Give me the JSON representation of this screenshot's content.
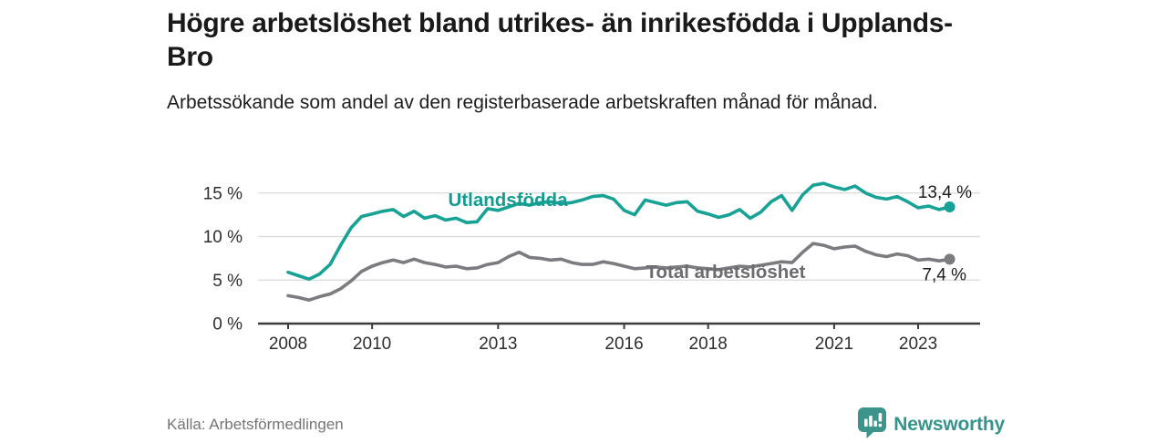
{
  "page": {
    "title": "Högre arbetslöshet bland utrikes- än inrikesfödda i Upplands-Bro",
    "subtitle": "Arbetssökande som andel av den registerbaserade arbetskraften månad för månad.",
    "source": "Källa: Arbetsförmedlingen",
    "brand": {
      "name": "Newsworthy",
      "icon": "newsworthy-chart-bubble-icon",
      "color": "#35948C"
    }
  },
  "chart_data": {
    "type": "line",
    "title": "",
    "xlabel": "",
    "ylabel": "",
    "grid": "horizontal",
    "legend_position": "inline-labels",
    "ylim": [
      0,
      17
    ],
    "y_ticks": [
      {
        "value": 0,
        "label": "0 %"
      },
      {
        "value": 5,
        "label": "5 %"
      },
      {
        "value": 10,
        "label": "10 %"
      },
      {
        "value": 15,
        "label": "15 %"
      }
    ],
    "x_ticks": [
      2008,
      2010,
      2013,
      2016,
      2018,
      2021,
      2023
    ],
    "x_start": 2008,
    "x_step_years": 0.25,
    "x": [
      2008,
      2008.25,
      2008.5,
      2008.75,
      2009,
      2009.25,
      2009.5,
      2009.75,
      2010,
      2010.25,
      2010.5,
      2010.75,
      2011,
      2011.25,
      2011.5,
      2011.75,
      2012,
      2012.25,
      2012.5,
      2012.75,
      2013,
      2013.25,
      2013.5,
      2013.75,
      2014,
      2014.25,
      2014.5,
      2014.75,
      2015,
      2015.25,
      2015.5,
      2015.75,
      2016,
      2016.25,
      2016.5,
      2016.75,
      2017,
      2017.25,
      2017.5,
      2017.75,
      2018,
      2018.25,
      2018.5,
      2018.75,
      2019,
      2019.25,
      2019.5,
      2019.75,
      2020,
      2020.25,
      2020.5,
      2020.75,
      2021,
      2021.25,
      2021.5,
      2021.75,
      2022,
      2022.25,
      2022.5,
      2022.75,
      2023,
      2023.25,
      2023.5,
      2023.75
    ],
    "series": [
      {
        "name": "Utlandsfödda",
        "color": "#17A295",
        "label_color": "#149C90",
        "value_label": "13,4 %",
        "last_value": 13.4,
        "values": [
          5.9,
          5.5,
          5.1,
          5.7,
          6.8,
          9.0,
          11.0,
          12.3,
          12.6,
          12.9,
          13.1,
          12.3,
          12.9,
          12.1,
          12.4,
          11.9,
          12.1,
          11.6,
          11.7,
          13.2,
          13.0,
          13.4,
          13.8,
          13.6,
          13.9,
          14.0,
          13.8,
          13.9,
          14.2,
          14.6,
          14.7,
          14.3,
          13.0,
          12.5,
          14.2,
          13.9,
          13.6,
          13.9,
          14.0,
          12.9,
          12.6,
          12.2,
          12.5,
          13.1,
          12.1,
          12.8,
          14.0,
          14.7,
          13.0,
          14.8,
          15.9,
          16.1,
          15.7,
          15.4,
          15.8,
          15.0,
          14.5,
          14.3,
          14.6,
          14.0,
          13.3,
          13.5,
          13.1,
          13.4
        ]
      },
      {
        "name": "Total arbetslöshet",
        "color": "#7B7B80",
        "label_color": "#6B6B70",
        "value_label": "7,4 %",
        "last_value": 7.4,
        "values": [
          3.2,
          3.0,
          2.7,
          3.1,
          3.4,
          4.0,
          4.9,
          6.0,
          6.6,
          7.0,
          7.3,
          7.0,
          7.4,
          7.0,
          6.8,
          6.5,
          6.6,
          6.3,
          6.4,
          6.8,
          7.0,
          7.7,
          8.2,
          7.6,
          7.5,
          7.3,
          7.4,
          7.0,
          6.8,
          6.8,
          7.1,
          6.9,
          6.6,
          6.3,
          6.4,
          6.5,
          6.4,
          6.5,
          6.6,
          6.4,
          6.3,
          6.2,
          6.4,
          6.6,
          6.5,
          6.7,
          6.9,
          7.1,
          7.0,
          8.2,
          9.2,
          9.0,
          8.6,
          8.8,
          8.9,
          8.3,
          7.9,
          7.7,
          8.0,
          7.8,
          7.3,
          7.4,
          7.2,
          7.4
        ]
      }
    ]
  }
}
